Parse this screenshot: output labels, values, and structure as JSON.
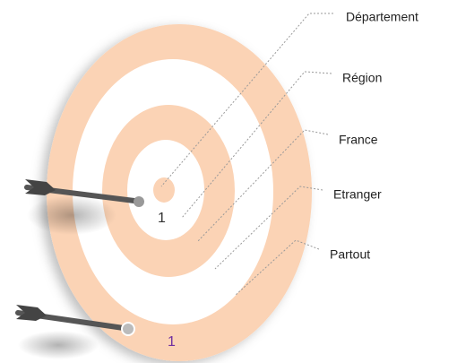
{
  "rings": [
    {
      "label": "Département"
    },
    {
      "label": "Région"
    },
    {
      "label": "France"
    },
    {
      "label": "Etranger"
    },
    {
      "label": "Partout"
    }
  ],
  "markers": [
    {
      "label": "1"
    },
    {
      "label": "1"
    }
  ]
}
